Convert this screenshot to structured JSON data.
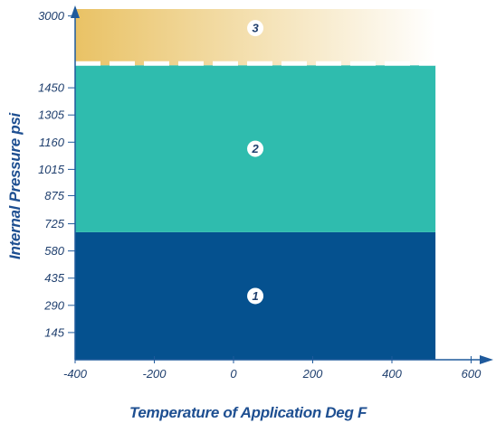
{
  "chart_data": {
    "type": "area",
    "title": "",
    "xlabel": "Temperature of Application Deg F",
    "ylabel": "Internal Pressure psi",
    "x_ticks": [
      "-400",
      "-200",
      "0",
      "200",
      "400",
      "600"
    ],
    "y_ticks": [
      "145",
      "290",
      "435",
      "580",
      "725",
      "875",
      "1015",
      "1160",
      "1305",
      "1450",
      "3000"
    ],
    "xlim": [
      -400,
      600
    ],
    "zones": [
      {
        "label": "1",
        "x_range": [
          -400,
          510
        ],
        "p_range": [
          0,
          680
        ],
        "color": "#05518f"
      },
      {
        "label": "2",
        "x_range": [
          -400,
          510
        ],
        "p_range": [
          680,
          1570
        ],
        "color": "#2fbcae"
      },
      {
        "label": "3",
        "x_range": [
          -400,
          510
        ],
        "p_range": [
          1570,
          3200
        ],
        "color_start": "#e9c265",
        "color_end": "#ffffff"
      }
    ],
    "axis_break": "dashed white line between zone 2 and zone 3",
    "grid": false,
    "axis_color": "#1f5a9c"
  }
}
